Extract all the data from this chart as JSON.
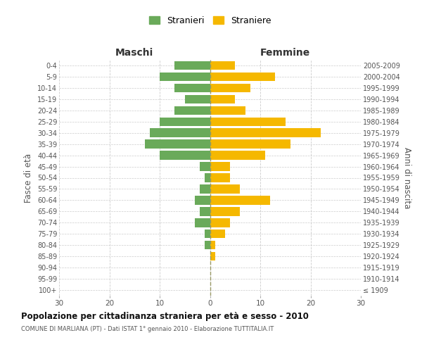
{
  "age_groups": [
    "100+",
    "95-99",
    "90-94",
    "85-89",
    "80-84",
    "75-79",
    "70-74",
    "65-69",
    "60-64",
    "55-59",
    "50-54",
    "45-49",
    "40-44",
    "35-39",
    "30-34",
    "25-29",
    "20-24",
    "15-19",
    "10-14",
    "5-9",
    "0-4"
  ],
  "birth_years": [
    "≤ 1909",
    "1910-1914",
    "1915-1919",
    "1920-1924",
    "1925-1929",
    "1930-1934",
    "1935-1939",
    "1940-1944",
    "1945-1949",
    "1950-1954",
    "1955-1959",
    "1960-1964",
    "1965-1969",
    "1970-1974",
    "1975-1979",
    "1980-1984",
    "1985-1989",
    "1990-1994",
    "1995-1999",
    "2000-2004",
    "2005-2009"
  ],
  "maschi": [
    0,
    0,
    0,
    0,
    1,
    1,
    3,
    2,
    3,
    2,
    1,
    2,
    10,
    13,
    12,
    10,
    7,
    5,
    7,
    10,
    7
  ],
  "femmine": [
    0,
    0,
    0,
    1,
    1,
    3,
    4,
    6,
    12,
    6,
    4,
    4,
    11,
    16,
    22,
    15,
    7,
    5,
    8,
    13,
    5
  ],
  "male_color": "#6aaa5a",
  "female_color": "#f5b800",
  "title": "Popolazione per cittadinanza straniera per età e sesso - 2010",
  "subtitle": "COMUNE DI MARLIANA (PT) - Dati ISTAT 1° gennaio 2010 - Elaborazione TUTTITALIA.IT",
  "ylabel_left": "Fasce di età",
  "ylabel_right": "Anni di nascita",
  "xlabel_left": "Maschi",
  "xlabel_right": "Femmine",
  "legend_male": "Stranieri",
  "legend_female": "Straniere",
  "xlim": 30,
  "background_color": "#ffffff",
  "grid_color": "#cccccc"
}
